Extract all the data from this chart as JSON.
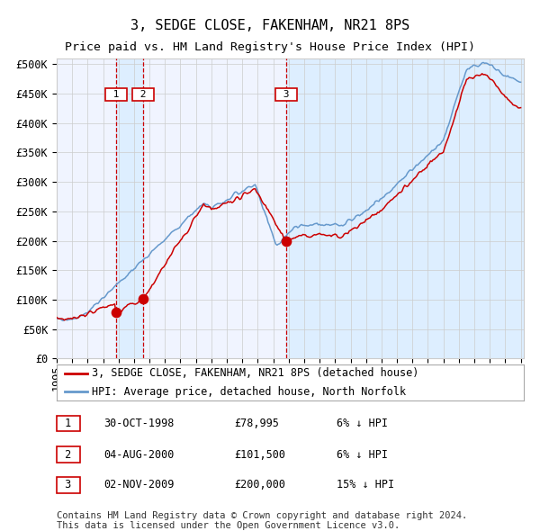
{
  "title": "3, SEDGE CLOSE, FAKENHAM, NR21 8PS",
  "subtitle": "Price paid vs. HM Land Registry's House Price Index (HPI)",
  "ylabel_ticks": [
    "£0",
    "£50K",
    "£100K",
    "£150K",
    "£200K",
    "£250K",
    "£300K",
    "£350K",
    "£400K",
    "£450K",
    "£500K"
  ],
  "ytick_values": [
    0,
    50000,
    100000,
    150000,
    200000,
    250000,
    300000,
    350000,
    400000,
    450000,
    500000
  ],
  "ylim": [
    0,
    510000
  ],
  "sales": [
    {
      "num": 1,
      "date": "30-OCT-1998",
      "price": 78995,
      "pct": "6%",
      "dir": "↓"
    },
    {
      "num": 2,
      "date": "04-AUG-2000",
      "price": 101500,
      "pct": "6%",
      "dir": "↓"
    },
    {
      "num": 3,
      "date": "02-NOV-2009",
      "price": 200000,
      "pct": "15%",
      "dir": "↓"
    }
  ],
  "sale_dates_decimal": [
    1998.83,
    2000.59,
    2009.84
  ],
  "sale_prices": [
    78995,
    101500,
    200000
  ],
  "line_color_red": "#cc0000",
  "line_color_blue": "#6699cc",
  "shade_color": "#ddeeff",
  "grid_color": "#cccccc",
  "background_color": "#ffffff",
  "plot_bg_color": "#f0f4ff",
  "vline_color": "#cc0000",
  "marker_color": "#cc0000",
  "legend1": "3, SEDGE CLOSE, FAKENHAM, NR21 8PS (detached house)",
  "legend2": "HPI: Average price, detached house, North Norfolk",
  "footnote1": "Contains HM Land Registry data © Crown copyright and database right 2024.",
  "footnote2": "This data is licensed under the Open Government Licence v3.0.",
  "title_fontsize": 11,
  "subtitle_fontsize": 9.5,
  "tick_fontsize": 8.5,
  "legend_fontsize": 8.5,
  "table_fontsize": 8.5,
  "footnote_fontsize": 7.5
}
